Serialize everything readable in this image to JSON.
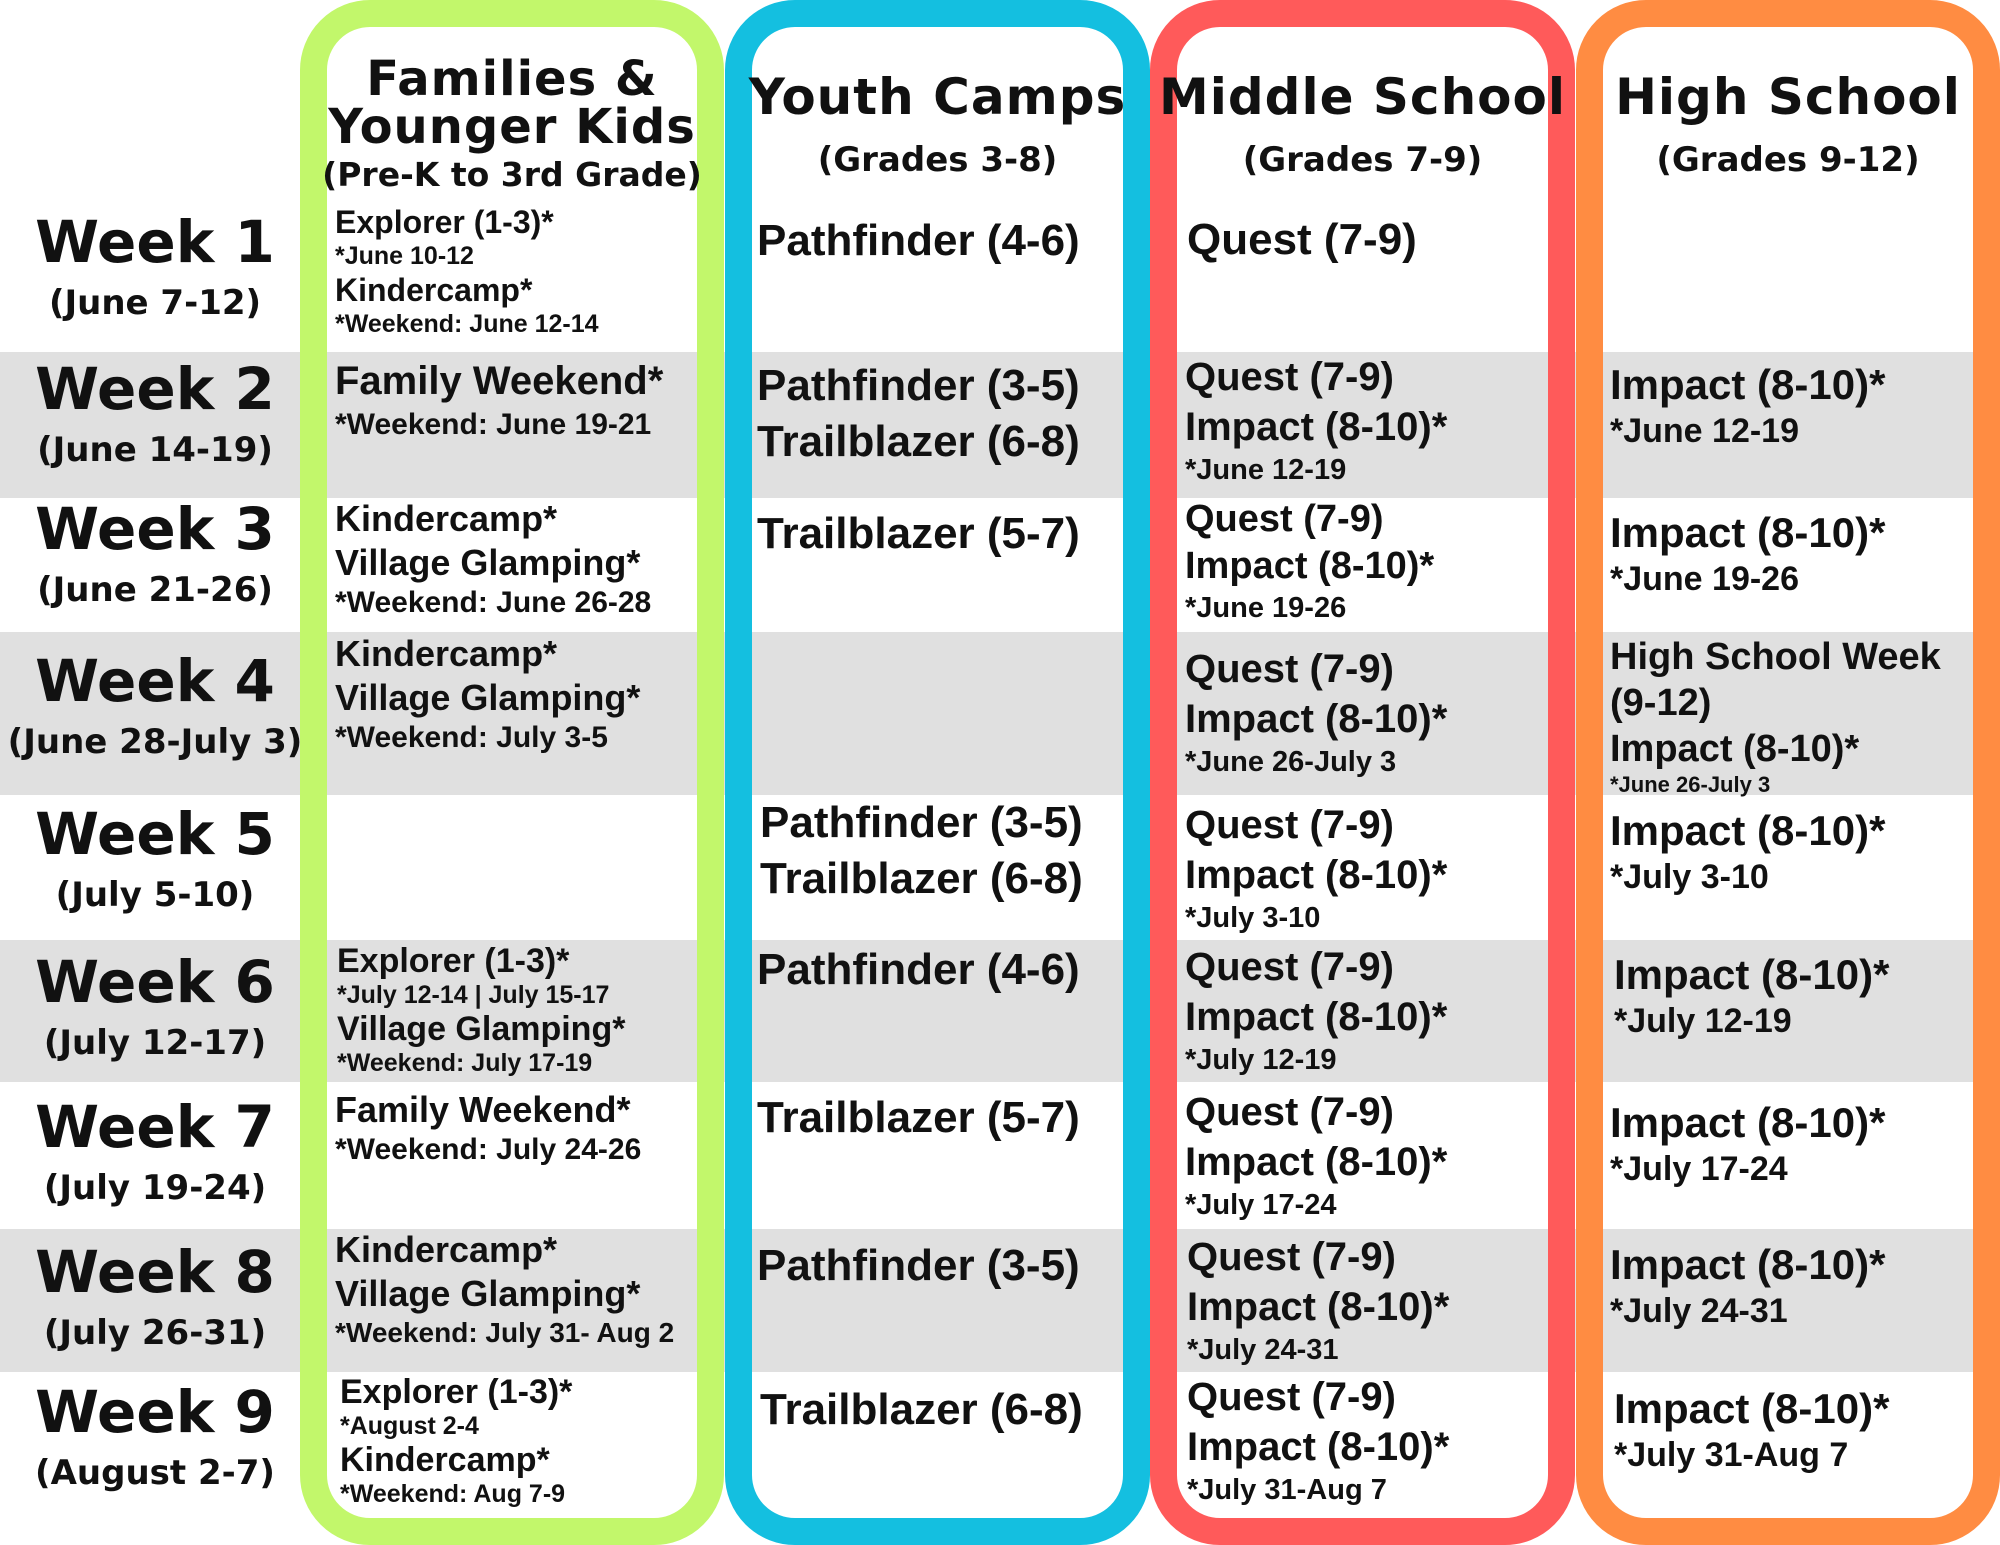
{
  "colors": {
    "families": "#c2f76b",
    "youth": "#14bfe0",
    "middle": "#ff5a5a",
    "high": "#ff8c42",
    "band": "#e0e0e0"
  },
  "headers": {
    "families": {
      "title": "Families &\nYounger Kids",
      "subtitle": "(Pre-K to 3rd Grade)"
    },
    "youth": {
      "title": "Youth Camps",
      "subtitle": "(Grades 3-8)"
    },
    "middle": {
      "title": "Middle School",
      "subtitle": "(Grades 7-9)"
    },
    "high": {
      "title": "High School",
      "subtitle": "(Grades 9-12)"
    }
  },
  "weeks": [
    {
      "label": "Week 1",
      "dates": "(June 7-12)"
    },
    {
      "label": "Week 2",
      "dates": "(June 14-19)"
    },
    {
      "label": "Week 3",
      "dates": "(June 21-26)"
    },
    {
      "label": "Week 4",
      "dates": "(June 28-July 3)"
    },
    {
      "label": "Week 5",
      "dates": "(July 5-10)"
    },
    {
      "label": "Week 6",
      "dates": "(July 12-17)"
    },
    {
      "label": "Week 7",
      "dates": "(July 19-24)"
    },
    {
      "label": "Week 8",
      "dates": "(July 26-31)"
    },
    {
      "label": "Week 9",
      "dates": "(August 2-7)"
    }
  ],
  "families": [
    [
      "Explorer (1-3)*",
      "*June 10-12",
      "Kindercamp*",
      "*Weekend: June 12-14"
    ],
    [
      "Family Weekend*",
      "*Weekend: June 19-21"
    ],
    [
      "Kindercamp*",
      "Village Glamping*",
      "*Weekend: June 26-28"
    ],
    [
      "Kindercamp*",
      "Village Glamping*",
      "*Weekend: July 3-5"
    ],
    [],
    [
      "Explorer (1-3)*",
      "*July 12-14 | July 15-17",
      "Village Glamping*",
      "*Weekend: July 17-19"
    ],
    [
      "Family Weekend*",
      "*Weekend: July 24-26"
    ],
    [
      "Kindercamp*",
      "Village Glamping*",
      "*Weekend: July 31- Aug 2"
    ],
    [
      "Explorer (1-3)*",
      "*August 2-4",
      "Kindercamp*",
      "*Weekend: Aug 7-9"
    ]
  ],
  "youth": [
    [
      "Pathfinder (4-6)"
    ],
    [
      "Pathfinder (3-5)",
      "Trailblazer (6-8)"
    ],
    [
      "Trailblazer (5-7)"
    ],
    [],
    [
      "Pathfinder (3-5)",
      "Trailblazer (6-8)"
    ],
    [
      "Pathfinder (4-6)"
    ],
    [
      "Trailblazer (5-7)"
    ],
    [
      "Pathfinder (3-5)"
    ],
    [
      "Trailblazer (6-8)"
    ]
  ],
  "middle": [
    [
      "Quest (7-9)"
    ],
    [
      "Quest (7-9)",
      "Impact (8-10)*",
      "*June 12-19"
    ],
    [
      "Quest (7-9)",
      "Impact (8-10)*",
      "*June 19-26"
    ],
    [
      "Quest (7-9)",
      "Impact (8-10)*",
      "*June 26-July 3"
    ],
    [
      "Quest (7-9)",
      "Impact (8-10)*",
      "*July 3-10"
    ],
    [
      "Quest (7-9)",
      "Impact (8-10)*",
      "*July 12-19"
    ],
    [
      "Quest (7-9)",
      "Impact (8-10)*",
      "*July 17-24"
    ],
    [
      "Quest (7-9)",
      "Impact (8-10)*",
      "*July 24-31"
    ],
    [
      "Quest (7-9)",
      "Impact (8-10)*",
      "*July 31-Aug 7"
    ]
  ],
  "high": [
    [],
    [
      "Impact (8-10)*",
      "*June 12-19"
    ],
    [
      "Impact (8-10)*",
      "*June 19-26"
    ],
    [
      "High School Week",
      "(9-12)",
      "Impact (8-10)*",
      "*June 26-July 3"
    ],
    [
      "Impact (8-10)*",
      "*July 3-10"
    ],
    [
      "Impact (8-10)*",
      "*July 12-19"
    ],
    [
      "Impact (8-10)*",
      "*July 17-24"
    ],
    [
      "Impact (8-10)*",
      "*July 24-31"
    ],
    [
      "Impact (8-10)*",
      "*July 31-Aug 7"
    ]
  ]
}
